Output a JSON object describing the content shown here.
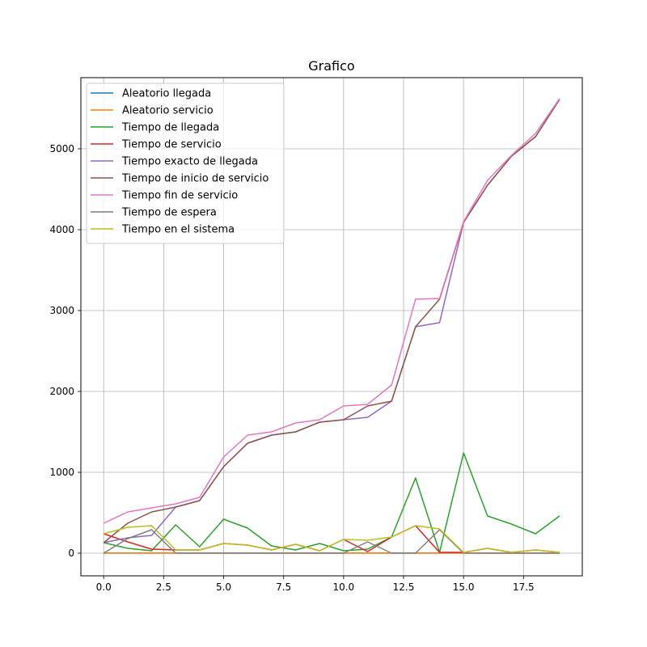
{
  "chart_data": {
    "type": "line",
    "title": "Grafico",
    "xlabel": "",
    "ylabel": "",
    "xlim": [
      -0.95,
      19.95
    ],
    "ylim": [
      -280,
      5880
    ],
    "xticks": [
      0.0,
      2.5,
      5.0,
      7.5,
      10.0,
      12.5,
      15.0,
      17.5
    ],
    "xtick_labels": [
      "0.0",
      "2.5",
      "5.0",
      "7.5",
      "10.0",
      "12.5",
      "15.0",
      "17.5"
    ],
    "yticks": [
      0,
      1000,
      2000,
      3000,
      4000,
      5000
    ],
    "ytick_labels": [
      "0",
      "1000",
      "2000",
      "3000",
      "4000",
      "5000"
    ],
    "grid": true,
    "legend_position": "top-left",
    "x": [
      0,
      1,
      2,
      3,
      4,
      5,
      6,
      7,
      8,
      9,
      10,
      11,
      12,
      13,
      14,
      15,
      16,
      17,
      18,
      19
    ],
    "series": [
      {
        "name": "Aleatorio llegada",
        "color": "#1f77b4",
        "values": [
          1,
          1,
          1,
          1,
          1,
          1,
          1,
          1,
          1,
          1,
          1,
          1,
          1,
          1,
          1,
          1,
          1,
          1,
          1,
          1
        ]
      },
      {
        "name": "Aleatorio servicio",
        "color": "#ff7f0e",
        "values": [
          1,
          1,
          1,
          1,
          1,
          1,
          1,
          1,
          1,
          1,
          1,
          1,
          1,
          1,
          1,
          1,
          1,
          1,
          1,
          1
        ]
      },
      {
        "name": "Tiempo de llegada",
        "color": "#2ca02c",
        "values": [
          130,
          60,
          30,
          350,
          80,
          420,
          310,
          90,
          40,
          120,
          30,
          50,
          200,
          930,
          10,
          1240,
          460,
          360,
          240,
          460
        ]
      },
      {
        "name": "Tiempo de servicio",
        "color": "#d62728",
        "values": [
          240,
          140,
          50,
          40,
          40,
          120,
          100,
          40,
          110,
          30,
          170,
          20,
          200,
          340,
          10,
          10,
          60,
          10,
          40,
          10
        ]
      },
      {
        "name": "Tiempo exacto de llegada",
        "color": "#9467bd",
        "values": [
          130,
          190,
          220,
          570,
          650,
          1070,
          1360,
          1460,
          1500,
          1620,
          1650,
          1680,
          1880,
          2800,
          2850,
          4090,
          4550,
          4910,
          5150,
          5610
        ]
      },
      {
        "name": "Tiempo de inicio de servicio",
        "color": "#8c564b",
        "values": [
          130,
          370,
          510,
          570,
          650,
          1070,
          1360,
          1460,
          1500,
          1620,
          1650,
          1820,
          1880,
          2800,
          3140,
          4090,
          4550,
          4910,
          5150,
          5610
        ]
      },
      {
        "name": "Tiempo fin de servicio",
        "color": "#e377c2",
        "values": [
          370,
          510,
          560,
          610,
          690,
          1190,
          1460,
          1500,
          1610,
          1650,
          1820,
          1840,
          2080,
          3140,
          3150,
          4100,
          4610,
          4920,
          5190,
          5620
        ]
      },
      {
        "name": "Tiempo de espera",
        "color": "#7f7f7f",
        "values": [
          0,
          180,
          290,
          0,
          0,
          0,
          0,
          0,
          0,
          0,
          0,
          140,
          0,
          0,
          290,
          0,
          0,
          0,
          0,
          0
        ]
      },
      {
        "name": "Tiempo en el sistema",
        "color": "#bcbd22",
        "values": [
          240,
          320,
          340,
          40,
          40,
          120,
          100,
          40,
          110,
          30,
          170,
          160,
          200,
          340,
          300,
          10,
          60,
          10,
          40,
          10
        ]
      }
    ]
  }
}
